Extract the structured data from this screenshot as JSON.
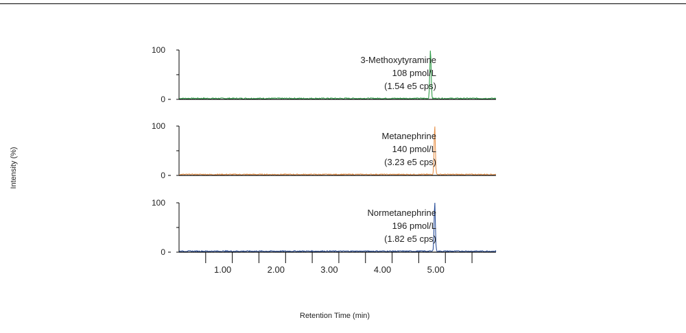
{
  "chart_data": {
    "type": "line",
    "title": "",
    "xlabel": "Retention Time (min)",
    "ylabel": "Intensity (%)",
    "xlim": [
      0,
      5.95
    ],
    "ylim": [
      0,
      100
    ],
    "x_ticks": [
      {
        "value": 1.0,
        "label": "1.00"
      },
      {
        "value": 2.0,
        "label": "2.00"
      },
      {
        "value": 3.0,
        "label": "3.00"
      },
      {
        "value": 4.0,
        "label": "4.00"
      },
      {
        "value": 5.0,
        "label": "5.00"
      }
    ],
    "x_minor_ticks": [
      0.5,
      1.5,
      2.5,
      3.5,
      4.5,
      5.5
    ],
    "y_tick_labels": [
      "100",
      "0"
    ],
    "grid": false,
    "panels": [
      {
        "label_lines": [
          "3-Methoxytyramine",
          "108 pmol/L",
          "(1.54 e5 cps)"
        ],
        "color": "#2e9b47",
        "peak_rt": 4.72,
        "peak_intensity": 100,
        "baseline_intensity": 1.5
      },
      {
        "label_lines": [
          "Metanephrine",
          "140 pmol/L",
          "(3.23 e5 cps)"
        ],
        "color": "#e8924a",
        "peak_rt": 4.8,
        "peak_intensity": 100,
        "baseline_intensity": 1.5
      },
      {
        "label_lines": [
          "Normetanephrine",
          "196 pmol/L",
          "(1.82 e5 cps)"
        ],
        "color": "#2a4f9a",
        "peak_rt": 4.8,
        "peak_intensity": 100,
        "baseline_intensity": 1.5
      }
    ]
  }
}
